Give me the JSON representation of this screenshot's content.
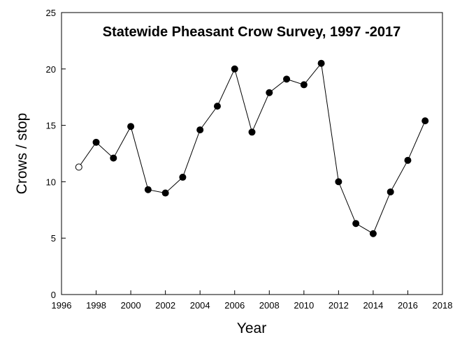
{
  "chart_data": {
    "type": "line",
    "title": "Statewide Pheasant Crow Survey, 1997 -2017",
    "xlabel": "Year",
    "ylabel": "Crows / stop",
    "xlim": [
      1996,
      2018
    ],
    "ylim": [
      0,
      25
    ],
    "x_ticks": [
      "1996",
      "1998",
      "2000",
      "2002",
      "2004",
      "2006",
      "2008",
      "2010",
      "2012",
      "2014",
      "2016",
      "2018"
    ],
    "y_ticks": [
      "0",
      "5",
      "10",
      "15",
      "20",
      "25"
    ],
    "grid": false,
    "legend": "none",
    "marker_colors": {
      "filled": "#000000",
      "open": "#ffffff"
    },
    "series": [
      {
        "x": [
          1997,
          1998,
          1999,
          2000,
          2001,
          2002,
          2003,
          2004,
          2005,
          2006,
          2007,
          2008,
          2009,
          2010,
          2011,
          2012,
          2013,
          2014,
          2015,
          2016,
          2017
        ],
        "y": [
          11.3,
          13.5,
          12.1,
          14.9,
          9.3,
          9.0,
          10.4,
          14.6,
          16.7,
          20.0,
          14.4,
          17.9,
          19.1,
          18.6,
          20.5,
          10.0,
          6.3,
          5.4,
          9.1,
          11.9,
          15.4
        ],
        "marker_fill": [
          "open",
          "filled",
          "filled",
          "filled",
          "filled",
          "filled",
          "filled",
          "filled",
          "filled",
          "filled",
          "filled",
          "filled",
          "filled",
          "filled",
          "filled",
          "filled",
          "filled",
          "filled",
          "filled",
          "filled",
          "filled"
        ]
      }
    ]
  }
}
